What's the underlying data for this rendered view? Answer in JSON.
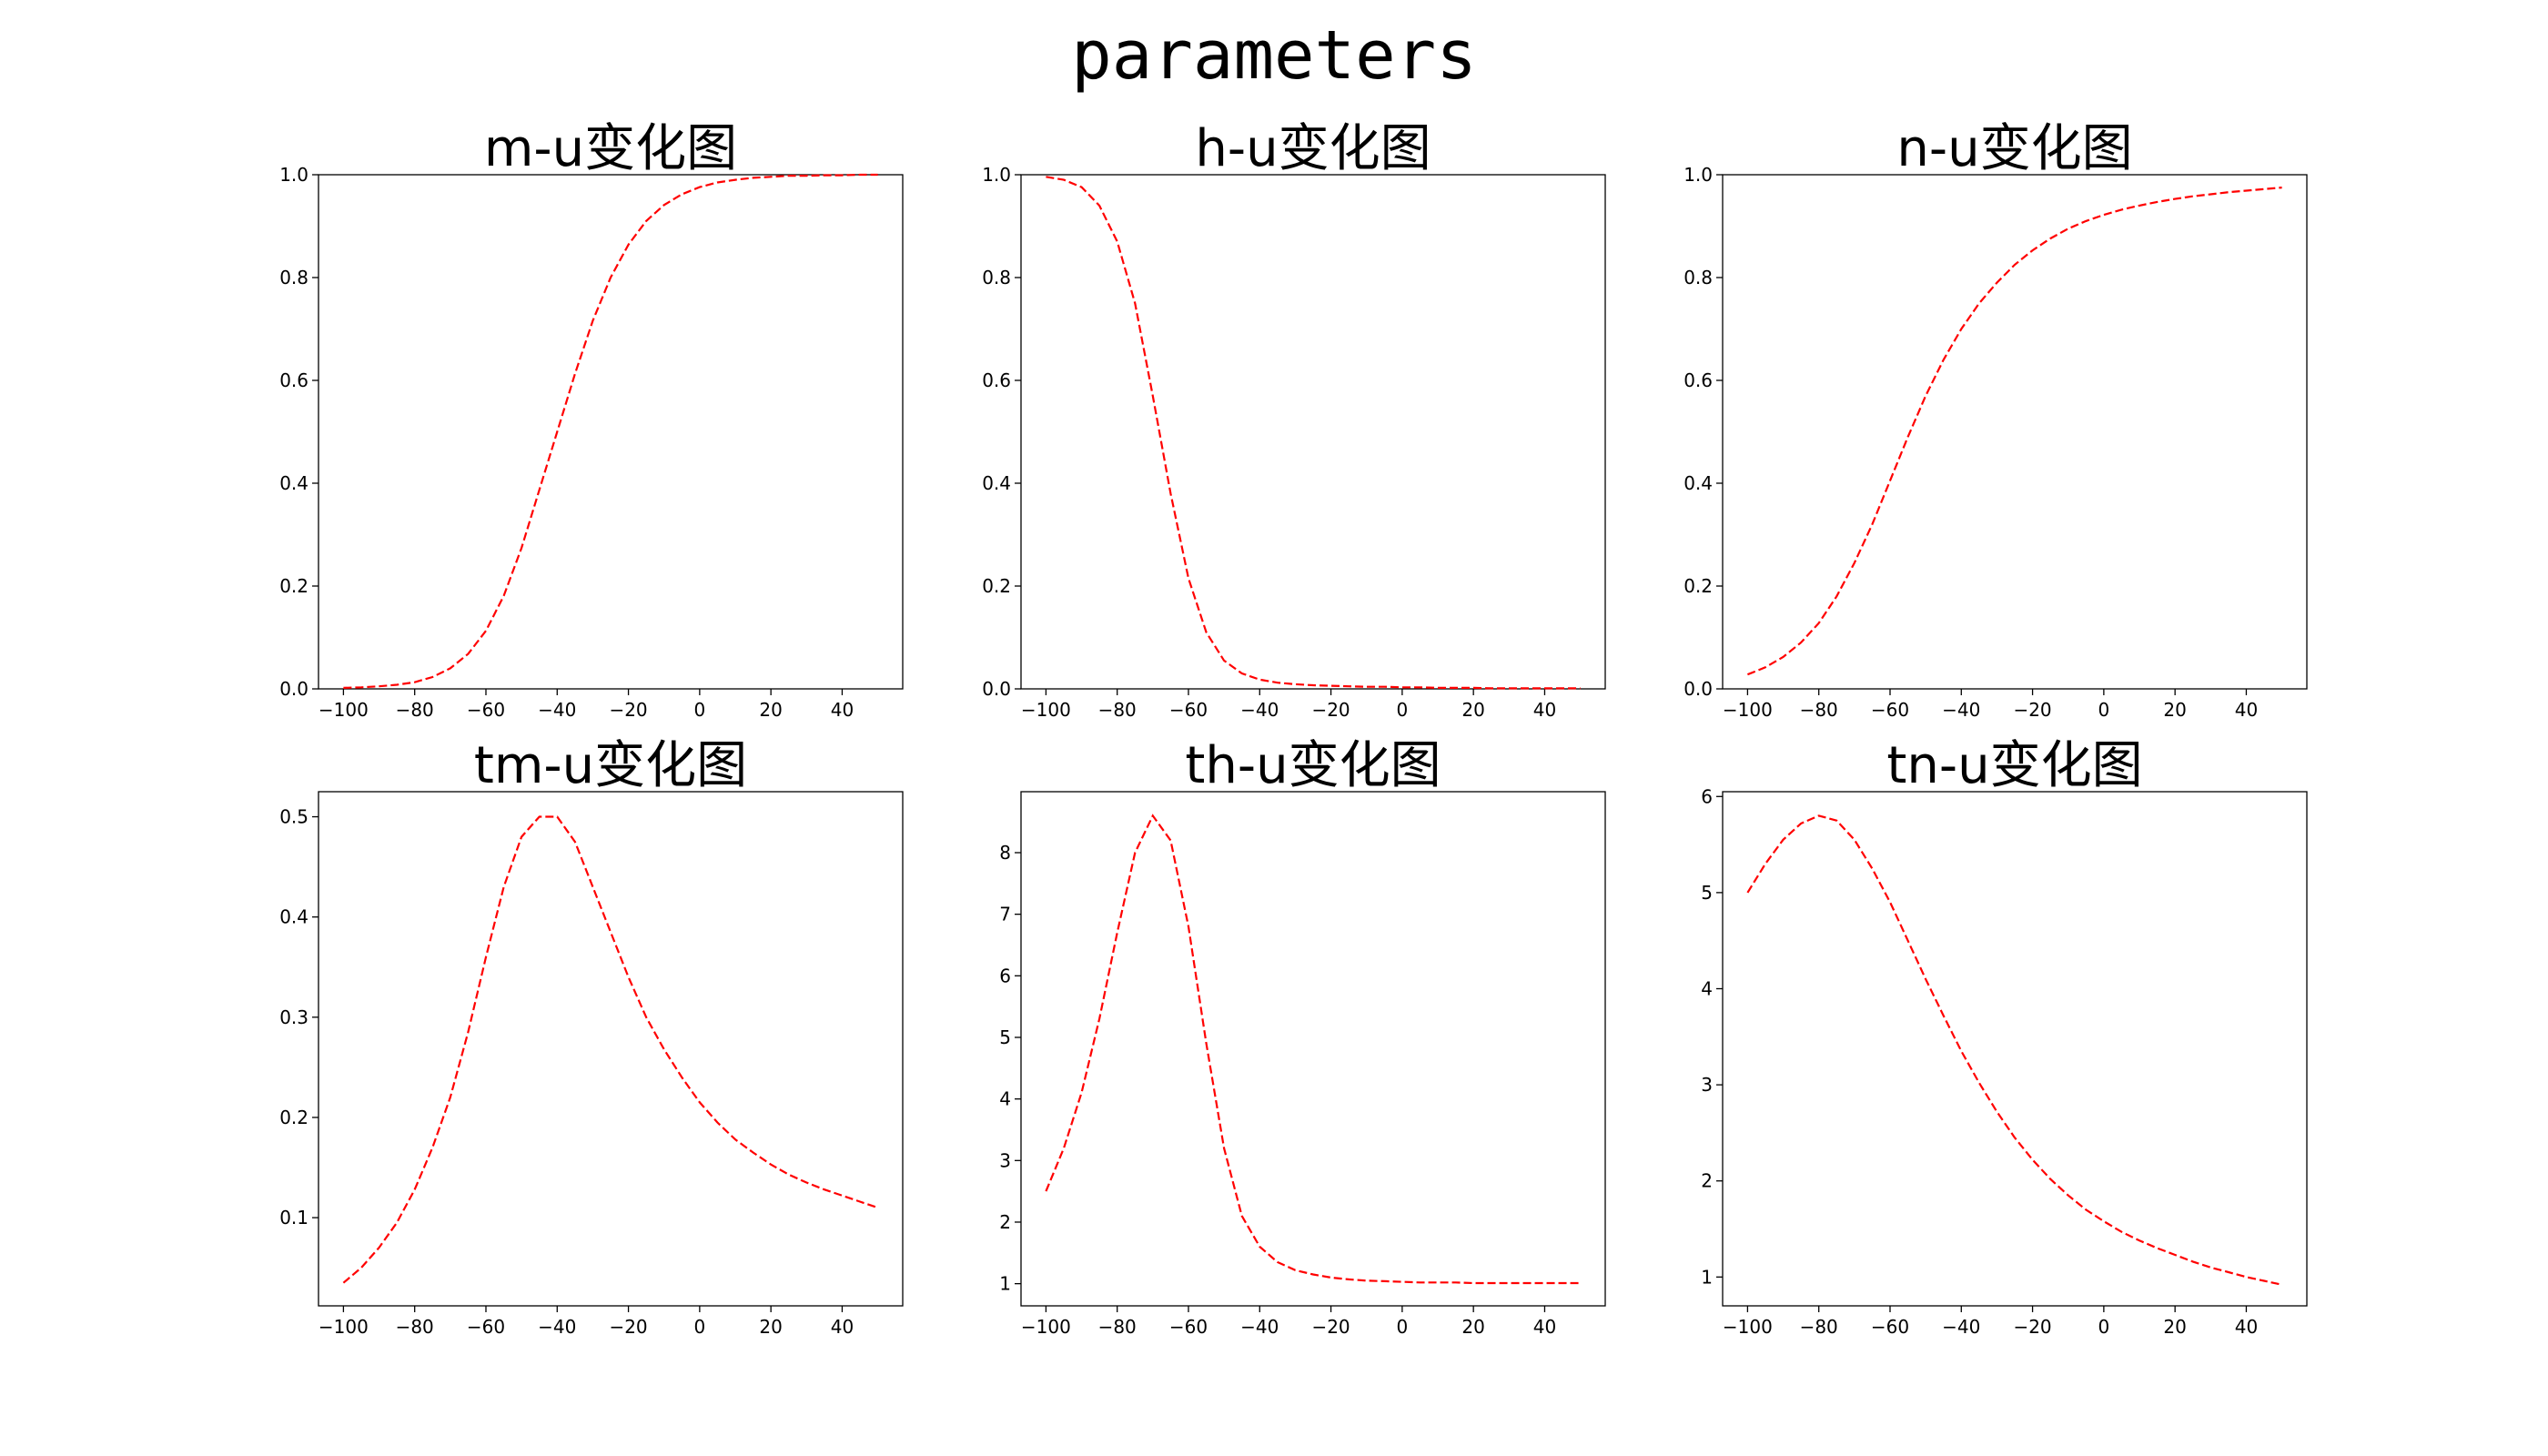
{
  "title": "parameters",
  "chart_data": [
    {
      "type": "line",
      "title": "m-u变化图",
      "xlabel": "",
      "ylabel": "",
      "xlim": [
        -107,
        57
      ],
      "ylim": [
        0,
        1.0
      ],
      "xticks": [
        -100,
        -80,
        -60,
        -40,
        -20,
        0,
        20,
        40
      ],
      "yticks": [
        0.0,
        0.2,
        0.4,
        0.6,
        0.8,
        1.0
      ],
      "ytick_labels": [
        "0.0",
        "0.2",
        "0.4",
        "0.6",
        "0.8",
        "1.0"
      ],
      "line_color": "#ff0000",
      "series": [
        {
          "x": [
            -100,
            -95,
            -90,
            -85,
            -80,
            -75,
            -70,
            -65,
            -60,
            -55,
            -50,
            -45,
            -40,
            -35,
            -30,
            -25,
            -20,
            -15,
            -10,
            -5,
            0,
            5,
            10,
            15,
            20,
            25,
            30,
            35,
            40,
            45,
            50
          ],
          "y": [
            0.002,
            0.003,
            0.005,
            0.008,
            0.013,
            0.023,
            0.04,
            0.068,
            0.113,
            0.181,
            0.274,
            0.387,
            0.5,
            0.613,
            0.716,
            0.8,
            0.864,
            0.91,
            0.941,
            0.962,
            0.976,
            0.985,
            0.99,
            0.994,
            0.996,
            0.998,
            0.998,
            0.999,
            0.999,
            1.0,
            1.0
          ]
        }
      ]
    },
    {
      "type": "line",
      "title": "h-u变化图",
      "xlabel": "",
      "ylabel": "",
      "xlim": [
        -107,
        57
      ],
      "ylim": [
        0,
        1.0
      ],
      "xticks": [
        -100,
        -80,
        -60,
        -40,
        -20,
        0,
        20,
        40
      ],
      "yticks": [
        0.0,
        0.2,
        0.4,
        0.6,
        0.8,
        1.0
      ],
      "ytick_labels": [
        "0.0",
        "0.2",
        "0.4",
        "0.6",
        "0.8",
        "1.0"
      ],
      "line_color": "#ff0000",
      "series": [
        {
          "x": [
            -100,
            -95,
            -90,
            -85,
            -80,
            -75,
            -70,
            -65,
            -60,
            -55,
            -50,
            -45,
            -40,
            -35,
            -30,
            -25,
            -20,
            -15,
            -10,
            -5,
            0,
            5,
            10,
            15,
            20,
            25,
            30,
            35,
            40,
            45,
            50
          ],
          "y": [
            0.996,
            0.99,
            0.976,
            0.94,
            0.87,
            0.75,
            0.57,
            0.38,
            0.215,
            0.11,
            0.055,
            0.03,
            0.018,
            0.012,
            0.009,
            0.007,
            0.006,
            0.005,
            0.004,
            0.004,
            0.003,
            0.003,
            0.002,
            0.002,
            0.002,
            0.001,
            0.001,
            0.001,
            0.001,
            0.001,
            0.001
          ]
        }
      ]
    },
    {
      "type": "line",
      "title": "n-u变化图",
      "xlabel": "",
      "ylabel": "",
      "xlim": [
        -107,
        57
      ],
      "ylim": [
        0,
        1.0
      ],
      "xticks": [
        -100,
        -80,
        -60,
        -40,
        -20,
        0,
        20,
        40
      ],
      "yticks": [
        0.0,
        0.2,
        0.4,
        0.6,
        0.8,
        1.0
      ],
      "ytick_labels": [
        "0.0",
        "0.2",
        "0.4",
        "0.6",
        "0.8",
        "1.0"
      ],
      "line_color": "#ff0000",
      "series": [
        {
          "x": [
            -100,
            -95,
            -90,
            -85,
            -80,
            -75,
            -70,
            -65,
            -60,
            -55,
            -50,
            -45,
            -40,
            -35,
            -30,
            -25,
            -20,
            -15,
            -10,
            -5,
            0,
            5,
            10,
            15,
            20,
            25,
            30,
            35,
            40,
            45,
            50
          ],
          "y": [
            0.028,
            0.042,
            0.062,
            0.09,
            0.128,
            0.18,
            0.245,
            0.32,
            0.405,
            0.49,
            0.57,
            0.64,
            0.7,
            0.75,
            0.79,
            0.825,
            0.853,
            0.876,
            0.895,
            0.91,
            0.922,
            0.932,
            0.94,
            0.947,
            0.953,
            0.958,
            0.962,
            0.966,
            0.969,
            0.972,
            0.975
          ]
        }
      ]
    },
    {
      "type": "line",
      "title": "tm-u变化图",
      "xlabel": "",
      "ylabel": "",
      "xlim": [
        -107,
        57
      ],
      "ylim": [
        0.012,
        0.525
      ],
      "xticks": [
        -100,
        -80,
        -60,
        -40,
        -20,
        0,
        20,
        40
      ],
      "yticks": [
        0.1,
        0.2,
        0.3,
        0.4,
        0.5
      ],
      "ytick_labels": [
        "0.1",
        "0.2",
        "0.3",
        "0.4",
        "0.5"
      ],
      "line_color": "#ff0000",
      "series": [
        {
          "x": [
            -100,
            -95,
            -90,
            -85,
            -80,
            -75,
            -70,
            -65,
            -60,
            -55,
            -50,
            -45,
            -40,
            -35,
            -30,
            -25,
            -20,
            -15,
            -10,
            -5,
            0,
            5,
            10,
            15,
            20,
            25,
            30,
            35,
            40,
            45,
            50
          ],
          "y": [
            0.035,
            0.05,
            0.07,
            0.095,
            0.128,
            0.17,
            0.22,
            0.285,
            0.36,
            0.43,
            0.48,
            0.5,
            0.5,
            0.475,
            0.43,
            0.385,
            0.34,
            0.3,
            0.268,
            0.24,
            0.215,
            0.195,
            0.178,
            0.165,
            0.153,
            0.143,
            0.135,
            0.128,
            0.122,
            0.116,
            0.11
          ]
        }
      ]
    },
    {
      "type": "line",
      "title": "th-u变化图",
      "xlabel": "",
      "ylabel": "",
      "xlim": [
        -107,
        57
      ],
      "ylim": [
        0.64,
        8.99
      ],
      "xticks": [
        -100,
        -80,
        -60,
        -40,
        -20,
        0,
        20,
        40
      ],
      "yticks": [
        1,
        2,
        3,
        4,
        5,
        6,
        7,
        8
      ],
      "ytick_labels": [
        "1",
        "2",
        "3",
        "4",
        "5",
        "6",
        "7",
        "8"
      ],
      "line_color": "#ff0000",
      "series": [
        {
          "x": [
            -100,
            -95,
            -90,
            -85,
            -80,
            -75,
            -70,
            -65,
            -60,
            -55,
            -50,
            -45,
            -40,
            -35,
            -30,
            -25,
            -20,
            -15,
            -10,
            -5,
            0,
            5,
            10,
            15,
            20,
            25,
            30,
            35,
            40,
            45,
            50
          ],
          "y": [
            2.5,
            3.2,
            4.1,
            5.3,
            6.7,
            8.0,
            8.6,
            8.2,
            6.8,
            4.9,
            3.2,
            2.1,
            1.6,
            1.35,
            1.22,
            1.15,
            1.1,
            1.07,
            1.05,
            1.04,
            1.03,
            1.02,
            1.02,
            1.02,
            1.01,
            1.01,
            1.01,
            1.01,
            1.01,
            1.01,
            1.01
          ]
        }
      ]
    },
    {
      "type": "line",
      "title": "tn-u变化图",
      "xlabel": "",
      "ylabel": "",
      "xlim": [
        -107,
        57
      ],
      "ylim": [
        0.7,
        6.05
      ],
      "xticks": [
        -100,
        -80,
        -60,
        -40,
        -20,
        0,
        20,
        40
      ],
      "yticks": [
        1,
        2,
        3,
        4,
        5,
        6
      ],
      "ytick_labels": [
        "1",
        "2",
        "3",
        "4",
        "5",
        "6"
      ],
      "line_color": "#ff0000",
      "series": [
        {
          "x": [
            -100,
            -95,
            -90,
            -85,
            -80,
            -75,
            -70,
            -65,
            -60,
            -55,
            -50,
            -45,
            -40,
            -35,
            -30,
            -25,
            -20,
            -15,
            -10,
            -5,
            0,
            5,
            10,
            15,
            20,
            25,
            30,
            35,
            40,
            45,
            50
          ],
          "y": [
            5.0,
            5.3,
            5.55,
            5.72,
            5.8,
            5.75,
            5.55,
            5.25,
            4.9,
            4.5,
            4.1,
            3.72,
            3.35,
            3.02,
            2.72,
            2.45,
            2.22,
            2.02,
            1.85,
            1.7,
            1.58,
            1.47,
            1.38,
            1.3,
            1.23,
            1.16,
            1.1,
            1.05,
            1.0,
            0.96,
            0.92
          ]
        }
      ]
    }
  ]
}
